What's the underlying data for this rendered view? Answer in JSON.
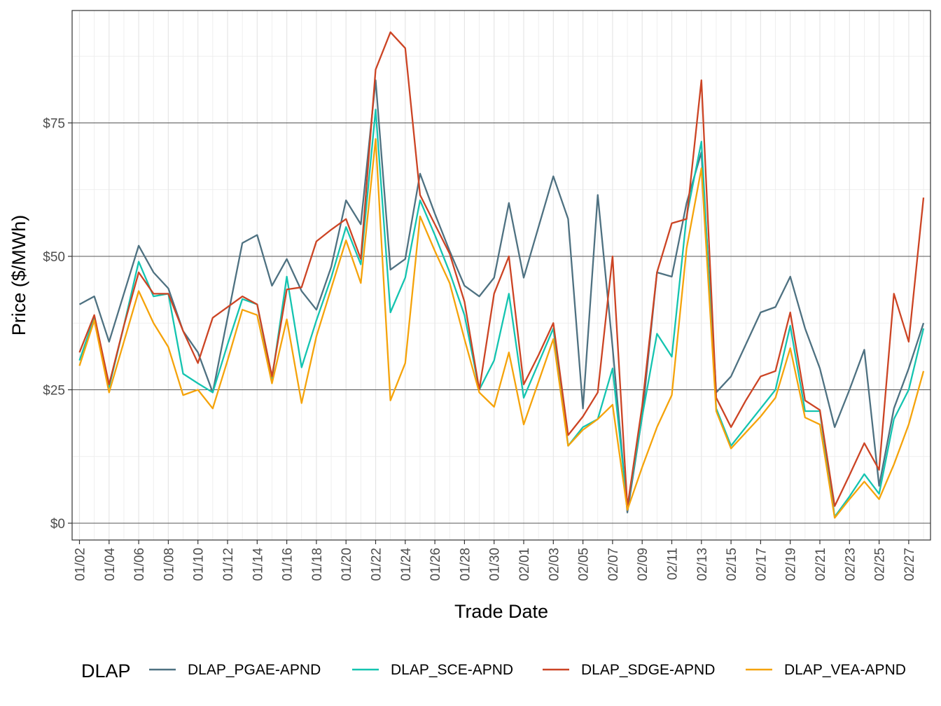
{
  "chart_data": {
    "type": "line",
    "xlabel": "Trade Date",
    "ylabel": "Price ($/MWh)",
    "ylim": [
      -2.5,
      96
    ],
    "y_ticks": [
      0,
      25,
      50,
      75
    ],
    "y_tick_labels": [
      "$0",
      "$25",
      "$50",
      "$75"
    ],
    "grid": true,
    "legend_position": "bottom",
    "legend_title": "DLAP",
    "x": [
      "01/02",
      "01/03",
      "01/04",
      "01/05",
      "01/06",
      "01/07",
      "01/08",
      "01/09",
      "01/10",
      "01/11",
      "01/12",
      "01/13",
      "01/14",
      "01/15",
      "01/16",
      "01/17",
      "01/18",
      "01/19",
      "01/20",
      "01/21",
      "01/22",
      "01/23",
      "01/24",
      "01/25",
      "01/26",
      "01/27",
      "01/28",
      "01/29",
      "01/30",
      "01/31",
      "02/01",
      "02/02",
      "02/03",
      "02/04",
      "02/05",
      "02/06",
      "02/07",
      "02/08",
      "02/09",
      "02/10",
      "02/11",
      "02/12",
      "02/13",
      "02/14",
      "02/15",
      "02/16",
      "02/17",
      "02/18",
      "02/19",
      "02/20",
      "02/21",
      "02/22",
      "02/23",
      "02/24",
      "02/25",
      "02/26",
      "02/27",
      "02/28"
    ],
    "x_tick_labels": [
      "01/02",
      "01/04",
      "01/06",
      "01/08",
      "01/10",
      "01/12",
      "01/14",
      "01/16",
      "01/18",
      "01/20",
      "01/22",
      "01/24",
      "01/26",
      "01/28",
      "01/30",
      "02/01",
      "02/03",
      "02/05",
      "02/07",
      "02/09",
      "02/11",
      "02/13",
      "02/15",
      "02/17",
      "02/19",
      "02/21",
      "02/23",
      "02/25",
      "02/27"
    ],
    "series": [
      {
        "name": "DLAP_PGAE-APND",
        "color": "#4e7181",
        "values": [
          41,
          42.5,
          34,
          43,
          52,
          47,
          44,
          36,
          32,
          24.5,
          38.5,
          52.5,
          54,
          44.5,
          49.5,
          43.5,
          40,
          48,
          60.5,
          56,
          83,
          47.5,
          49.5,
          65.5,
          58,
          51,
          44.5,
          42.5,
          46,
          60,
          46,
          55.5,
          65,
          57,
          21.5,
          61.5,
          33,
          2,
          20,
          47,
          46.2,
          60,
          69.5,
          24.5,
          27.5,
          33.5,
          39.5,
          40.5,
          46.2,
          36.5,
          29,
          18,
          25,
          32.5,
          7,
          21.5,
          29,
          37.5
        ]
      },
      {
        "name": "DLAP_SCE-APND",
        "color": "#14c4b0",
        "values": [
          30.5,
          38.5,
          25.5,
          37,
          49,
          42.5,
          43,
          28,
          26.2,
          24.5,
          33.5,
          42,
          41,
          27,
          46.2,
          29.2,
          38,
          46,
          55.5,
          48.5,
          77.5,
          39.5,
          46,
          60.5,
          54,
          47,
          39,
          25,
          30.5,
          43,
          23.5,
          30,
          36.5,
          14.5,
          18,
          19.5,
          29,
          3,
          20,
          35.5,
          31.2,
          57.5,
          71.5,
          21.5,
          14.5,
          18,
          21.5,
          25,
          37,
          21,
          21,
          1.2,
          5,
          9.2,
          5.5,
          19.5,
          25,
          36.5
        ]
      },
      {
        "name": "DLAP_SDGE-APND",
        "color": "#cc4424",
        "values": [
          32,
          39,
          26,
          37,
          47,
          43,
          43,
          36,
          30,
          38.5,
          40.5,
          42.5,
          41,
          27.5,
          43.8,
          44.2,
          52.8,
          55,
          57,
          49.5,
          85,
          92,
          89,
          61.5,
          56,
          50.5,
          41.5,
          25,
          43,
          50,
          26,
          31.5,
          37.5,
          16.5,
          20,
          24.5,
          50,
          3,
          22,
          47,
          56.2,
          57,
          83,
          23.5,
          18,
          23,
          27.5,
          28.5,
          39.5,
          23,
          21.2,
          3.2,
          9,
          15,
          10,
          43,
          34,
          61
        ]
      },
      {
        "name": "DLAP_VEA-APND",
        "color": "#f5a30a",
        "values": [
          29.5,
          38,
          24.5,
          34,
          43.5,
          37.5,
          33,
          24,
          25,
          21.5,
          30.5,
          40,
          39,
          26.2,
          38.2,
          22.5,
          35,
          44,
          53,
          45,
          72,
          23,
          30,
          57.5,
          51,
          45,
          34.5,
          24.5,
          21.8,
          32,
          18.5,
          26.5,
          34.5,
          14.5,
          17.5,
          19.5,
          22.2,
          2.5,
          10.5,
          18,
          24,
          51.5,
          66.5,
          21,
          14,
          17,
          20,
          23.5,
          32.8,
          19.8,
          18.5,
          1,
          4.5,
          7.8,
          4.5,
          11,
          18.5,
          28.5
        ]
      }
    ]
  }
}
